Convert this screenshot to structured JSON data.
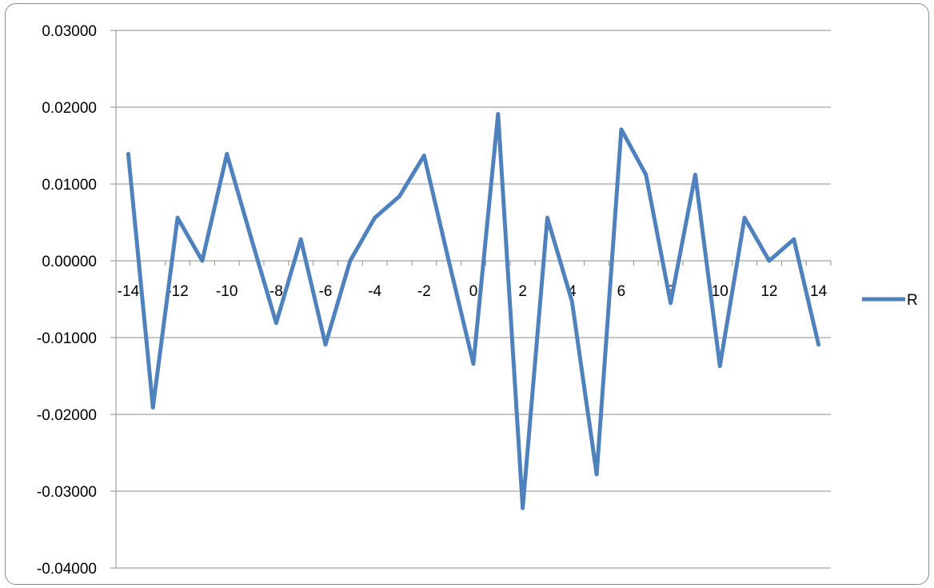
{
  "chart_data": {
    "type": "line",
    "title": "",
    "xlabel": "",
    "ylabel": "",
    "x": [
      -14,
      -13,
      -12,
      -11,
      -10,
      -9,
      -8,
      -7,
      -6,
      -5,
      -4,
      -3,
      -2,
      -1,
      0,
      1,
      2,
      3,
      4,
      5,
      6,
      7,
      8,
      9,
      10,
      11,
      12,
      13,
      14
    ],
    "series": [
      {
        "name": "R",
        "color": "#4f81bd",
        "values": [
          0.0139,
          -0.0191,
          0.0056,
          0.0,
          0.0139,
          0.0028,
          -0.0081,
          0.0028,
          -0.0109,
          0.0,
          0.0056,
          0.0084,
          0.0137,
          0.0,
          -0.0134,
          0.0191,
          -0.0322,
          0.0056,
          -0.0053,
          -0.0278,
          0.0171,
          0.0112,
          -0.0055,
          0.0112,
          -0.0137,
          0.0056,
          0.0,
          0.0028,
          -0.0109
        ]
      }
    ],
    "ylim": [
      -0.04,
      0.03
    ],
    "y_ticks": [
      "0.03000",
      "0.02000",
      "0.01000",
      "0.00000",
      "-0.01000",
      "-0.02000",
      "-0.03000",
      "-0.04000"
    ],
    "x_tick_labels": [
      "-14",
      "-12",
      "-10",
      "-8",
      "-6",
      "-4",
      "-2",
      "0",
      "2",
      "4",
      "6",
      "8",
      "10",
      "12",
      "14"
    ],
    "grid": true,
    "legend_position": "right"
  }
}
